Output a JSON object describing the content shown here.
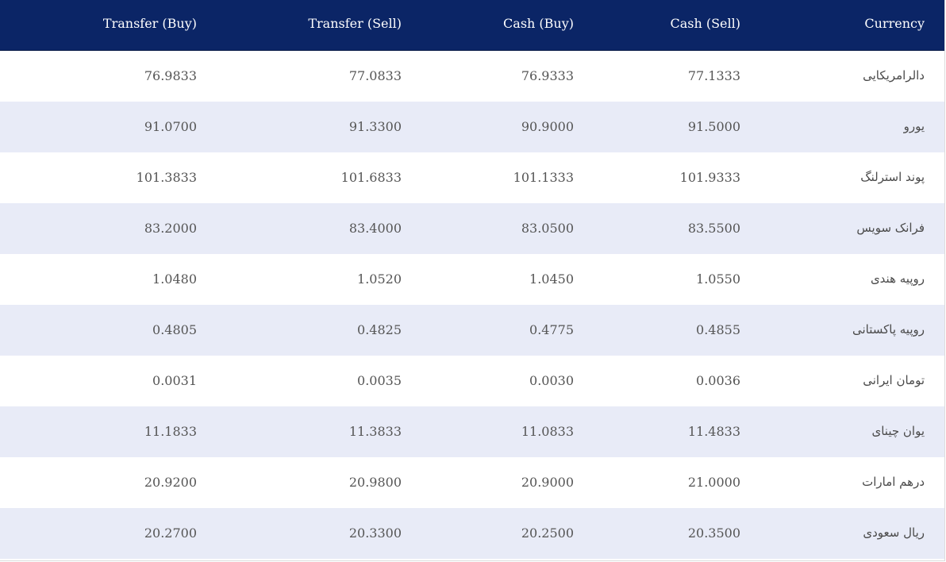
{
  "table": {
    "headers": {
      "transfer_buy": "Transfer (Buy)",
      "transfer_sell": "Transfer (Sell)",
      "cash_buy": "Cash (Buy)",
      "cash_sell": "Cash (Sell)",
      "currency": "Currency"
    },
    "rows": [
      {
        "currency": "دالرامریکایی",
        "cash_sell": "77.1333",
        "cash_buy": "76.9333",
        "transfer_sell": "77.0833",
        "transfer_buy": "76.9833"
      },
      {
        "currency": "یورو",
        "cash_sell": "91.5000",
        "cash_buy": "90.9000",
        "transfer_sell": "91.3300",
        "transfer_buy": "91.0700"
      },
      {
        "currency": "پوند استرلنگ",
        "cash_sell": "101.9333",
        "cash_buy": "101.1333",
        "transfer_sell": "101.6833",
        "transfer_buy": "101.3833"
      },
      {
        "currency": "فرانک سویس",
        "cash_sell": "83.5500",
        "cash_buy": "83.0500",
        "transfer_sell": "83.4000",
        "transfer_buy": "83.2000"
      },
      {
        "currency": "روپیه هندی",
        "cash_sell": "1.0550",
        "cash_buy": "1.0450",
        "transfer_sell": "1.0520",
        "transfer_buy": "1.0480"
      },
      {
        "currency": "روپیه پاکستانی",
        "cash_sell": "0.4855",
        "cash_buy": "0.4775",
        "transfer_sell": "0.4825",
        "transfer_buy": "0.4805"
      },
      {
        "currency": "تومان ایرانی",
        "cash_sell": "0.0036",
        "cash_buy": "0.0030",
        "transfer_sell": "0.0035",
        "transfer_buy": "0.0031"
      },
      {
        "currency": "یوان چینای",
        "cash_sell": "11.4833",
        "cash_buy": "11.0833",
        "transfer_sell": "11.3833",
        "transfer_buy": "11.1833"
      },
      {
        "currency": "درهم امارات",
        "cash_sell": "21.0000",
        "cash_buy": "20.9000",
        "transfer_sell": "20.9800",
        "transfer_buy": "20.9200"
      },
      {
        "currency": "ریال سعودی",
        "cash_sell": "20.3500",
        "cash_buy": "20.2500",
        "transfer_sell": "20.3300",
        "transfer_buy": "20.2700"
      }
    ]
  },
  "colors": {
    "header_background": "#0b2566",
    "header_text": "#ffffff",
    "alt_row_background": "#e8ebf7",
    "row_background": "#ffffff",
    "cell_text": "#555555"
  }
}
